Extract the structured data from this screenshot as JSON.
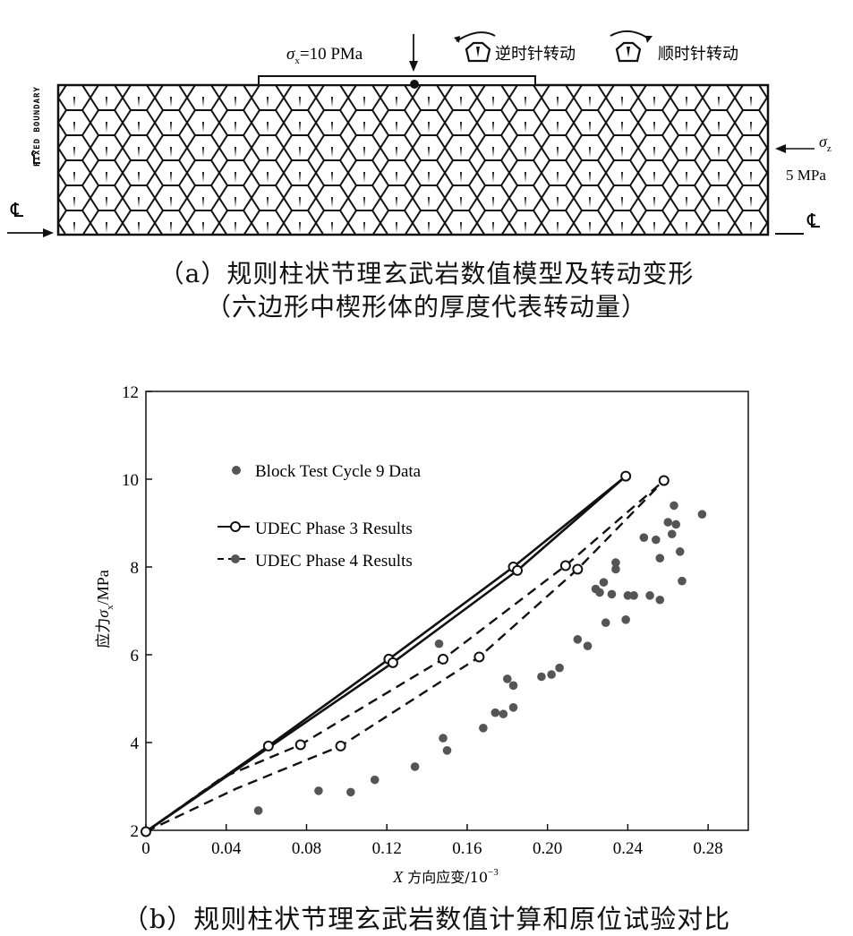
{
  "panel_a": {
    "sigma_x_symbol": "σ",
    "sigma_x_sub": "x",
    "sigma_x_value": "=10 PMa",
    "ccw_label": "逆时针转动",
    "cw_label": "顺时针转动",
    "fixed_boundary": "FIXED BOUNDARY",
    "sigma_z_symbol": "σ",
    "sigma_z_sub": "z",
    "sigma_z_value": "5 MPa",
    "centerline_symbol": "℄",
    "caption_line1": "（a）规则柱状节理玄武岩数值模型及转动变形",
    "caption_line2": "（六边形中楔形体的厚度代表转动量）"
  },
  "panel_b": {
    "caption": "（b）规则柱状节理玄武岩数值计算和原位试验对比"
  },
  "chart_data": {
    "type": "scatter",
    "xlabel_var": "X",
    "xlabel_rest": " 方向应变/10",
    "xlabel_exp": "−3",
    "ylabel_pre": "应力",
    "ylabel_var": "σ",
    "ylabel_sub": "x",
    "ylabel_post": "/MPa",
    "xlim": [
      0,
      0.3
    ],
    "ylim": [
      2,
      12
    ],
    "x_ticks": [
      0,
      0.04,
      0.08,
      0.12,
      0.16,
      0.2,
      0.24,
      0.28
    ],
    "x_tick_labels": [
      "0",
      "0.04",
      "0.08",
      "0.12",
      "0.16",
      "0.20",
      "0.24",
      "0.28"
    ],
    "y_ticks": [
      2,
      4,
      6,
      8,
      10,
      12
    ],
    "y_tick_labels": [
      "2",
      "4",
      "6",
      "8",
      "10",
      "12"
    ],
    "legend_placement": "upper-left",
    "series": [
      {
        "name": "Block Test Cycle 9 Data",
        "style": "filled-markers",
        "points": [
          [
            0.056,
            2.45
          ],
          [
            0.086,
            2.9
          ],
          [
            0.102,
            2.87
          ],
          [
            0.114,
            3.15
          ],
          [
            0.134,
            3.45
          ],
          [
            0.148,
            4.1
          ],
          [
            0.15,
            3.82
          ],
          [
            0.146,
            6.25
          ],
          [
            0.168,
            4.33
          ],
          [
            0.174,
            4.68
          ],
          [
            0.178,
            4.65
          ],
          [
            0.18,
            5.45
          ],
          [
            0.183,
            5.3
          ],
          [
            0.183,
            4.8
          ],
          [
            0.197,
            5.5
          ],
          [
            0.202,
            5.55
          ],
          [
            0.206,
            5.7
          ],
          [
            0.215,
            6.35
          ],
          [
            0.22,
            6.2
          ],
          [
            0.224,
            7.5
          ],
          [
            0.226,
            7.42
          ],
          [
            0.228,
            7.65
          ],
          [
            0.229,
            6.73
          ],
          [
            0.232,
            7.38
          ],
          [
            0.234,
            8.1
          ],
          [
            0.234,
            7.95
          ],
          [
            0.239,
            6.8
          ],
          [
            0.24,
            7.35
          ],
          [
            0.243,
            7.35
          ],
          [
            0.248,
            8.67
          ],
          [
            0.251,
            7.35
          ],
          [
            0.254,
            8.62
          ],
          [
            0.256,
            8.2
          ],
          [
            0.256,
            7.25
          ],
          [
            0.26,
            9.02
          ],
          [
            0.262,
            8.75
          ],
          [
            0.263,
            9.4
          ],
          [
            0.264,
            8.97
          ],
          [
            0.266,
            8.35
          ],
          [
            0.267,
            7.68
          ],
          [
            0.277,
            9.2
          ]
        ]
      },
      {
        "name": "UDEC Phase 3 Results",
        "style": "solid-line-open-markers",
        "lines": [
          [
            [
              0,
              1.97
            ],
            [
              0.061,
              3.92
            ],
            [
              0.121,
              5.9
            ],
            [
              0.183,
              8.0
            ],
            [
              0.239,
              10.07
            ]
          ],
          [
            [
              0,
              1.97
            ],
            [
              0.123,
              5.82
            ],
            [
              0.185,
              7.92
            ],
            [
              0.239,
              10.07
            ]
          ]
        ],
        "points": [
          [
            0,
            1.97
          ],
          [
            0.061,
            3.92
          ],
          [
            0.121,
            5.9
          ],
          [
            0.123,
            5.82
          ],
          [
            0.183,
            8.0
          ],
          [
            0.185,
            7.92
          ],
          [
            0.239,
            10.07
          ]
        ]
      },
      {
        "name": "UDEC Phase 4 Results",
        "style": "dashed-line-open-markers",
        "lines": [
          [
            [
              0,
              1.97
            ],
            [
              0.038,
              3.2
            ],
            [
              0.077,
              3.95
            ],
            [
              0.148,
              5.9
            ],
            [
              0.209,
              8.03
            ],
            [
              0.258,
              9.97
            ]
          ],
          [
            [
              0,
              1.97
            ],
            [
              0.045,
              2.95
            ],
            [
              0.097,
              3.92
            ],
            [
              0.166,
              5.95
            ],
            [
              0.215,
              7.95
            ],
            [
              0.258,
              9.97
            ]
          ]
        ],
        "points": [
          [
            0.077,
            3.95
          ],
          [
            0.097,
            3.92
          ],
          [
            0.148,
            5.9
          ],
          [
            0.166,
            5.95
          ],
          [
            0.209,
            8.03
          ],
          [
            0.215,
            7.95
          ],
          [
            0.258,
            9.97
          ]
        ]
      }
    ]
  }
}
